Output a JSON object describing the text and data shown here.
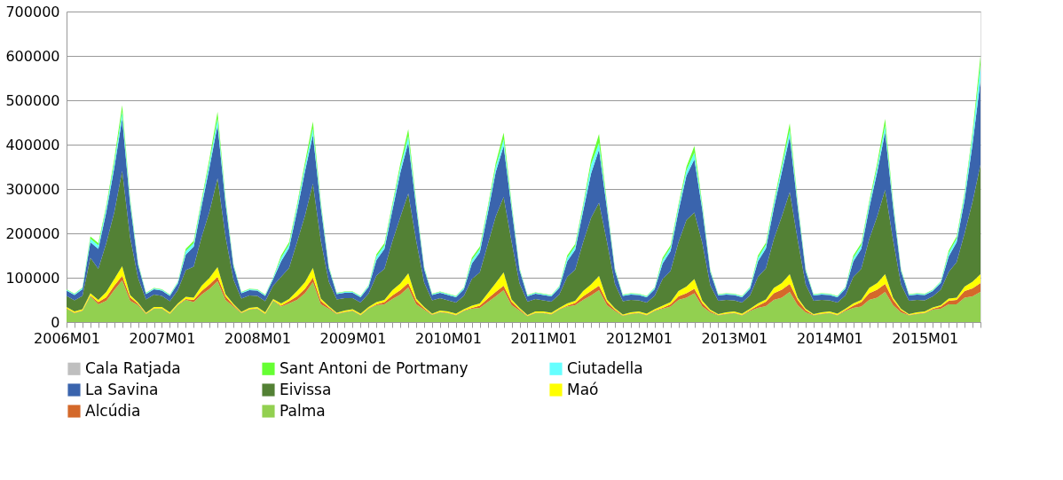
{
  "chart_data": {
    "type": "area",
    "stacked": true,
    "categories": [
      "2006M01",
      null,
      null,
      null,
      null,
      null,
      null,
      null,
      null,
      null,
      null,
      null,
      "2007M01",
      null,
      null,
      null,
      null,
      null,
      null,
      null,
      null,
      null,
      null,
      null,
      "2008M01",
      null,
      null,
      null,
      null,
      null,
      null,
      null,
      null,
      null,
      null,
      null,
      "2009M01",
      null,
      null,
      null,
      null,
      null,
      null,
      null,
      null,
      null,
      null,
      null,
      "2010M01",
      null,
      null,
      null,
      null,
      null,
      null,
      null,
      null,
      null,
      null,
      null,
      "2011M01",
      null,
      null,
      null,
      null,
      null,
      null,
      null,
      null,
      null,
      null,
      null,
      "2012M01",
      null,
      null,
      null,
      null,
      null,
      null,
      null,
      null,
      null,
      null,
      null,
      "2013M01",
      null,
      null,
      null,
      null,
      null,
      null,
      null,
      null,
      null,
      null,
      null,
      "2014M01",
      null,
      null,
      null,
      null,
      null,
      null,
      null,
      null,
      null,
      null,
      null,
      "2015M01",
      null,
      null,
      null,
      null,
      null,
      null,
      null
    ],
    "ylim": [
      0,
      700000
    ],
    "yticks": [
      0,
      100000,
      200000,
      300000,
      400000,
      500000,
      600000,
      700000
    ],
    "grid": "y",
    "legend": "bottom",
    "series": [
      {
        "name": "Palma",
        "color": "#92d050",
        "values": [
          30000,
          20000,
          25000,
          58000,
          40000,
          48000,
          72000,
          94000,
          48000,
          38000,
          18000,
          30000,
          30000,
          18000,
          38000,
          50000,
          45000,
          62000,
          75000,
          92000,
          50000,
          35000,
          20000,
          28000,
          30000,
          18000,
          48000,
          35000,
          42000,
          50000,
          65000,
          90000,
          40000,
          30000,
          18000,
          22000,
          25000,
          15000,
          30000,
          38000,
          40000,
          52000,
          62000,
          78000,
          40000,
          28000,
          16000,
          22000,
          20000,
          15000,
          25000,
          30000,
          32000,
          45000,
          58000,
          72000,
          38000,
          26000,
          13000,
          20000,
          20000,
          17000,
          28000,
          35000,
          38000,
          50000,
          60000,
          72000,
          38000,
          25000,
          14000,
          18000,
          20000,
          15000,
          25000,
          30000,
          35000,
          50000,
          55000,
          65000,
          35000,
          22000,
          15000,
          18000,
          20000,
          15000,
          25000,
          32000,
          36000,
          50000,
          55000,
          68000,
          38000,
          22000,
          15000,
          18000,
          20000,
          15000,
          25000,
          32000,
          35000,
          50000,
          55000,
          68000,
          38000,
          22000,
          15000,
          18000,
          20000,
          28000,
          30000,
          40000,
          40000,
          55000,
          58000,
          68000
        ]
      },
      {
        "name": "Alcúdia",
        "color": "#d4692a",
        "values": [
          1000,
          1000,
          1000,
          2000,
          5000,
          8000,
          10000,
          10000,
          8000,
          3000,
          1000,
          1000,
          1000,
          1000,
          1000,
          2000,
          5000,
          8000,
          10000,
          10000,
          8000,
          3000,
          1000,
          1000,
          1000,
          1000,
          1000,
          2000,
          5000,
          8000,
          10000,
          10000,
          8000,
          3000,
          1000,
          1000,
          1000,
          1000,
          1000,
          2000,
          5000,
          8000,
          10000,
          10000,
          8000,
          3000,
          1000,
          1000,
          1000,
          1000,
          1000,
          2000,
          5000,
          8000,
          10000,
          10000,
          8000,
          3000,
          1000,
          1000,
          1000,
          1000,
          1000,
          2000,
          5000,
          8000,
          10000,
          10000,
          8000,
          3000,
          1000,
          1000,
          1000,
          1000,
          1000,
          2000,
          5000,
          8000,
          10000,
          10000,
          8000,
          3000,
          1000,
          1000,
          1000,
          1000,
          2000,
          5000,
          10000,
          15000,
          18000,
          18000,
          12000,
          5000,
          1000,
          1000,
          1000,
          1000,
          2000,
          5000,
          10000,
          15000,
          18000,
          18000,
          12000,
          5000,
          1000,
          1000,
          1000,
          2000,
          5000,
          8000,
          10000,
          15000,
          18000,
          20000
        ]
      },
      {
        "name": "Maó",
        "color": "#ffff00",
        "values": [
          3000,
          3000,
          3000,
          5000,
          5000,
          12000,
          15000,
          22000,
          5000,
          3000,
          2000,
          3000,
          3000,
          3000,
          3000,
          5000,
          5000,
          12000,
          15000,
          22000,
          5000,
          3000,
          2000,
          3000,
          3000,
          3000,
          3000,
          5000,
          5000,
          12000,
          15000,
          22000,
          5000,
          3000,
          2000,
          3000,
          3000,
          3000,
          3000,
          5000,
          5000,
          12000,
          15000,
          22000,
          5000,
          3000,
          2000,
          3000,
          3000,
          3000,
          3000,
          5000,
          5000,
          12000,
          20000,
          30000,
          5000,
          3000,
          2000,
          3000,
          3000,
          3000,
          3000,
          5000,
          5000,
          12000,
          15000,
          22000,
          5000,
          3000,
          2000,
          3000,
          3000,
          3000,
          3000,
          5000,
          5000,
          12000,
          15000,
          22000,
          5000,
          3000,
          2000,
          3000,
          3000,
          3000,
          3000,
          5000,
          5000,
          12000,
          15000,
          22000,
          5000,
          3000,
          2000,
          3000,
          3000,
          3000,
          3000,
          5000,
          5000,
          12000,
          15000,
          22000,
          5000,
          3000,
          2000,
          3000,
          3000,
          3000,
          3000,
          5000,
          5000,
          10000,
          15000,
          20000
        ]
      },
      {
        "name": "Eivissa",
        "color": "#538135",
        "values": [
          25000,
          25000,
          30000,
          80000,
          70000,
          110000,
          150000,
          215000,
          130000,
          55000,
          30000,
          28000,
          25000,
          25000,
          30000,
          60000,
          70000,
          110000,
          150000,
          200000,
          130000,
          55000,
          30000,
          28000,
          25000,
          25000,
          30000,
          60000,
          70000,
          110000,
          150000,
          190000,
          130000,
          55000,
          30000,
          28000,
          25000,
          25000,
          30000,
          60000,
          70000,
          110000,
          150000,
          180000,
          130000,
          55000,
          30000,
          28000,
          25000,
          25000,
          30000,
          60000,
          70000,
          110000,
          150000,
          170000,
          130000,
          55000,
          30000,
          28000,
          25000,
          25000,
          30000,
          60000,
          70000,
          110000,
          150000,
          165000,
          130000,
          55000,
          30000,
          28000,
          25000,
          25000,
          30000,
          60000,
          70000,
          110000,
          150000,
          150000,
          130000,
          55000,
          30000,
          28000,
          25000,
          25000,
          30000,
          60000,
          70000,
          110000,
          150000,
          185000,
          130000,
          55000,
          30000,
          28000,
          25000,
          25000,
          30000,
          60000,
          70000,
          110000,
          150000,
          190000,
          130000,
          55000,
          30000,
          28000,
          25000,
          25000,
          35000,
          60000,
          80000,
          120000,
          180000,
          247000
        ]
      },
      {
        "name": "La Savina",
        "color": "#3a64ad",
        "values": [
          12000,
          12000,
          15000,
          35000,
          45000,
          70000,
          100000,
          118000,
          75000,
          30000,
          12000,
          12000,
          12000,
          12000,
          15000,
          35000,
          45000,
          70000,
          100000,
          120000,
          75000,
          30000,
          12000,
          12000,
          12000,
          12000,
          15000,
          35000,
          45000,
          70000,
          100000,
          110000,
          75000,
          30000,
          12000,
          12000,
          12000,
          12000,
          15000,
          35000,
          45000,
          70000,
          100000,
          115000,
          75000,
          30000,
          12000,
          12000,
          12000,
          12000,
          15000,
          35000,
          45000,
          70000,
          100000,
          115000,
          75000,
          30000,
          12000,
          12000,
          12000,
          12000,
          15000,
          35000,
          45000,
          70000,
          100000,
          120000,
          75000,
          30000,
          12000,
          12000,
          12000,
          12000,
          15000,
          35000,
          45000,
          70000,
          100000,
          120000,
          75000,
          30000,
          12000,
          12000,
          12000,
          12000,
          15000,
          35000,
          45000,
          70000,
          100000,
          125000,
          75000,
          30000,
          12000,
          12000,
          12000,
          12000,
          15000,
          35000,
          45000,
          70000,
          100000,
          130000,
          75000,
          30000,
          12000,
          12000,
          12000,
          12000,
          15000,
          35000,
          45000,
          75000,
          130000,
          190000
        ]
      },
      {
        "name": "Ciutadella",
        "color": "#66ffff",
        "values": [
          2000,
          2000,
          3000,
          8000,
          8000,
          10000,
          12000,
          15000,
          8000,
          3000,
          2000,
          2000,
          2000,
          2000,
          3000,
          8000,
          8000,
          10000,
          12000,
          15000,
          8000,
          3000,
          2000,
          2000,
          2000,
          2000,
          3000,
          8000,
          8000,
          10000,
          12000,
          15000,
          8000,
          3000,
          2000,
          2000,
          2000,
          2000,
          3000,
          8000,
          8000,
          10000,
          12000,
          15000,
          8000,
          3000,
          2000,
          2000,
          2000,
          2000,
          3000,
          8000,
          8000,
          10000,
          12000,
          15000,
          8000,
          3000,
          2000,
          2000,
          2000,
          2000,
          3000,
          8000,
          8000,
          10000,
          20000,
          15000,
          8000,
          3000,
          2000,
          2000,
          2000,
          2000,
          3000,
          8000,
          8000,
          10000,
          12000,
          15000,
          8000,
          3000,
          2000,
          2000,
          2000,
          2000,
          3000,
          8000,
          8000,
          10000,
          12000,
          15000,
          8000,
          3000,
          2000,
          2000,
          2000,
          2000,
          3000,
          8000,
          8000,
          10000,
          12000,
          15000,
          8000,
          3000,
          2000,
          2000,
          2000,
          2000,
          3000,
          8000,
          8000,
          12000,
          20000,
          35000
        ]
      },
      {
        "name": "Sant Antoni de Portmany",
        "color": "#66ff33",
        "values": [
          1000,
          1000,
          1000,
          5000,
          5000,
          5000,
          8000,
          15000,
          5000,
          2000,
          1000,
          1000,
          1000,
          1000,
          1000,
          5000,
          5000,
          5000,
          8000,
          15000,
          5000,
          2000,
          1000,
          1000,
          1000,
          1000,
          1000,
          5000,
          5000,
          5000,
          8000,
          15000,
          5000,
          2000,
          1000,
          1000,
          1000,
          1000,
          1000,
          5000,
          5000,
          5000,
          8000,
          15000,
          5000,
          2000,
          1000,
          1000,
          1000,
          1000,
          1000,
          5000,
          5000,
          5000,
          8000,
          15000,
          5000,
          2000,
          1000,
          1000,
          1000,
          1000,
          1000,
          5000,
          5000,
          5000,
          10000,
          20000,
          5000,
          2000,
          1000,
          1000,
          1000,
          1000,
          1000,
          5000,
          5000,
          5000,
          8000,
          15000,
          5000,
          2000,
          1000,
          1000,
          1000,
          1000,
          1000,
          5000,
          5000,
          5000,
          8000,
          15000,
          5000,
          2000,
          1000,
          1000,
          1000,
          1000,
          1000,
          5000,
          5000,
          5000,
          8000,
          15000,
          5000,
          2000,
          1000,
          1000,
          1000,
          1000,
          1000,
          5000,
          5000,
          5000,
          8000,
          20000
        ]
      },
      {
        "name": "Cala Ratjada",
        "color": "#bfbfbf",
        "values": [
          null,
          null,
          null,
          null,
          null,
          null,
          null,
          null,
          null,
          null,
          null,
          null,
          null,
          null,
          null,
          null,
          null,
          null,
          null,
          null,
          null,
          null,
          null,
          null,
          null,
          null,
          null,
          null,
          null,
          null,
          null,
          null,
          null,
          null,
          null,
          null,
          null,
          null,
          null,
          null,
          null,
          null,
          null,
          null,
          null,
          null,
          null,
          null,
          null,
          null,
          null,
          null,
          null,
          null,
          null,
          null,
          null,
          null,
          null,
          null,
          null,
          null,
          null,
          null,
          null,
          null,
          null,
          null,
          null,
          null,
          null,
          null,
          null,
          null,
          null,
          null,
          null,
          null,
          null,
          null,
          null,
          null,
          null,
          null,
          null,
          null,
          null,
          null,
          null,
          null,
          null,
          null,
          null,
          null,
          null,
          null,
          null,
          null,
          null,
          null,
          null,
          null,
          null,
          null,
          null,
          null,
          null,
          null,
          null,
          null,
          null,
          null,
          null,
          null,
          null,
          null
        ]
      }
    ]
  }
}
